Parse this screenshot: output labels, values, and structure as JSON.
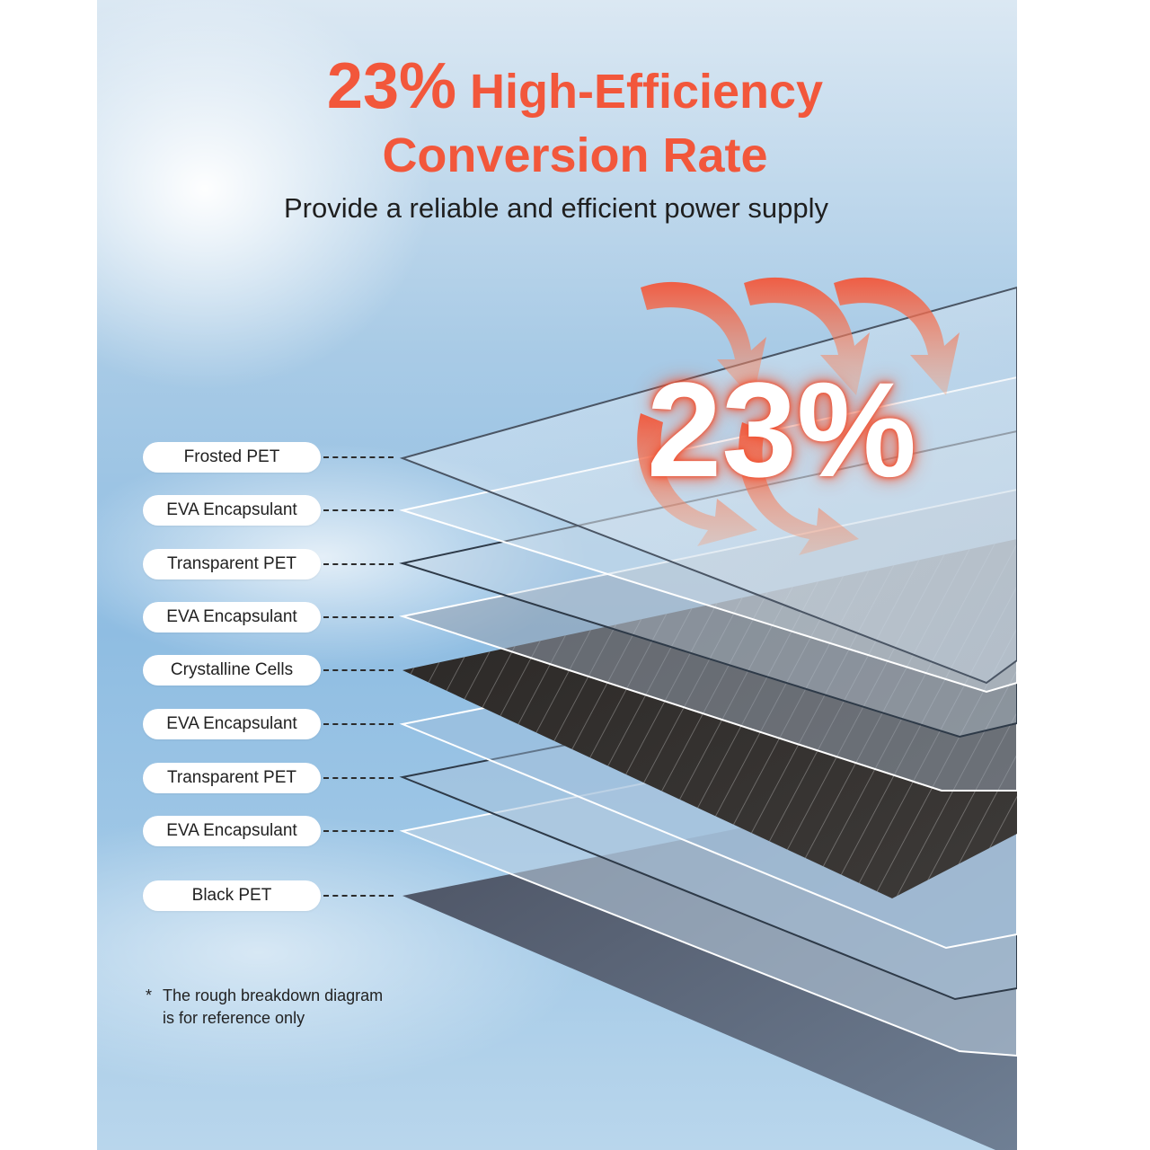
{
  "header": {
    "title_pct": "23%",
    "title_rest": " High-Efficiency",
    "title_line2": "Conversion Rate",
    "subtitle": "Provide a reliable and efficient power supply"
  },
  "diagram": {
    "big_percentage": "23%",
    "layers": [
      {
        "label": "Frosted PET"
      },
      {
        "label": "EVA Encapsulant"
      },
      {
        "label": "Transparent PET"
      },
      {
        "label": "EVA Encapsulant"
      },
      {
        "label": "Crystalline Cells"
      },
      {
        "label": "EVA Encapsulant"
      },
      {
        "label": "Transparent PET"
      },
      {
        "label": "EVA Encapsulant"
      },
      {
        "label": "Black PET"
      }
    ]
  },
  "footnote": {
    "star": "*",
    "line1": "The rough breakdown diagram",
    "line2": "is for reference only"
  },
  "colors": {
    "accent": "#f2573b",
    "sky": "#8fbde2",
    "cells": "#2e2c2b",
    "black_pet": "#3b4250"
  }
}
